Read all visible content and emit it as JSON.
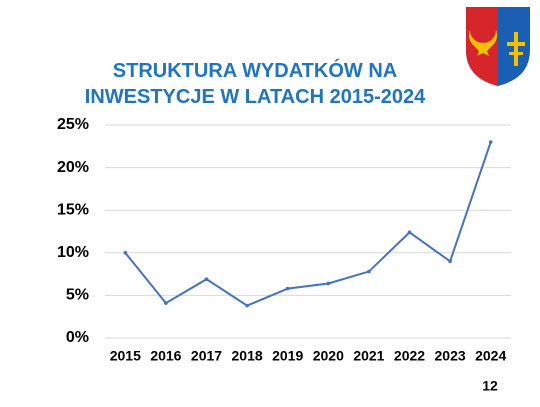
{
  "chart_data": {
    "type": "line",
    "title": "STRUKTURA WYDATKÓW NA INWESTYCJE W LATACH 2015-2024",
    "categories": [
      "2015",
      "2016",
      "2017",
      "2018",
      "2019",
      "2020",
      "2021",
      "2022",
      "2023",
      "2024"
    ],
    "values": [
      10.0,
      4.1,
      6.9,
      3.8,
      5.8,
      6.4,
      7.8,
      12.4,
      9.0,
      23.0
    ],
    "color": "#4472c4",
    "ylim": [
      0,
      25
    ],
    "yticks": [
      {
        "value": 0,
        "label": "0%"
      },
      {
        "value": 5,
        "label": "5%"
      },
      {
        "value": 10,
        "label": "10%"
      },
      {
        "value": 15,
        "label": "15%"
      },
      {
        "value": 20,
        "label": "20%"
      },
      {
        "value": 25,
        "label": "25%"
      }
    ],
    "grid": true
  },
  "page_number": "12"
}
